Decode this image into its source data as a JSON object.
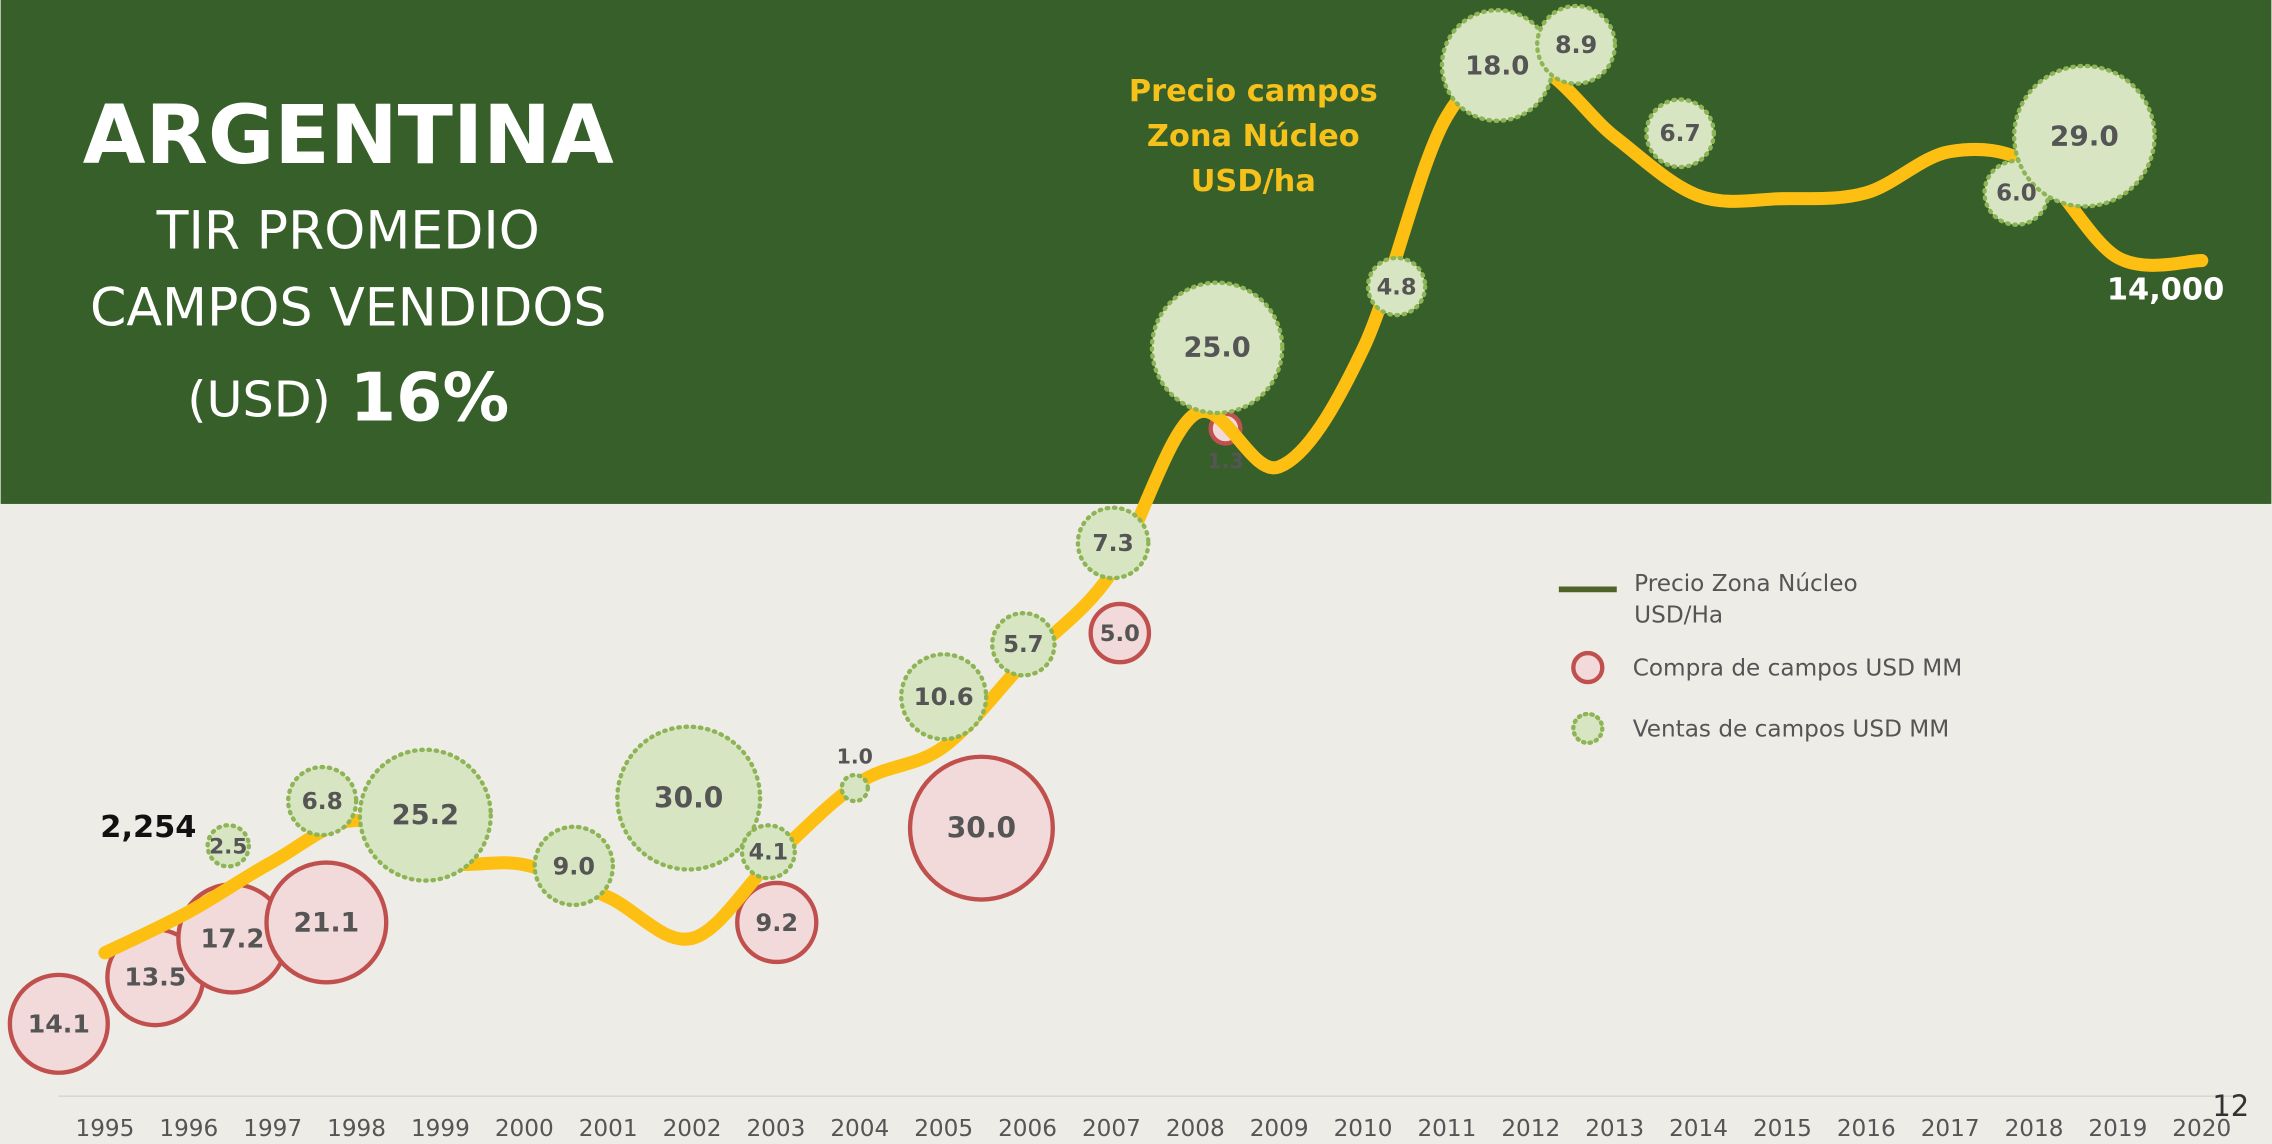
{
  "chart_data": {
    "type": "bubble",
    "title": "ARGENTINA",
    "subtitle_lines": [
      "TIR PROMEDIO",
      "CAMPOS VENDIDOS"
    ],
    "tir_unit": "(USD)",
    "tir_value": "16%",
    "annotation": [
      "Precio campos",
      "Zona Núcleo",
      "USD/ha"
    ],
    "page_number": "12",
    "xlim": [
      1993.757,
      2020.829
    ],
    "xticks": [
      1995,
      1996,
      1997,
      1998,
      1999,
      2000,
      2001,
      2002,
      2003,
      2004,
      2005,
      2006,
      2007,
      2008,
      2009,
      2010,
      2011,
      2012,
      2013,
      2014,
      2015,
      2016,
      2017,
      2018,
      2019,
      2020
    ],
    "ylim": [
      -989,
      18421
    ],
    "line": {
      "name": "Precio Zona Núcleo USD/Ha",
      "color": "#fcbf12",
      "legend_color": "#4f6228",
      "x": [
        1995,
        1996,
        1997,
        1998,
        1999,
        2000,
        2001,
        2002,
        2003,
        2004,
        2005,
        2006,
        2007,
        2008,
        2009,
        2010,
        2011,
        2012,
        2013,
        2014,
        2015,
        2016,
        2017,
        2018,
        2019,
        2020
      ],
      "values": [
        2254,
        2950,
        3800,
        4500,
        3800,
        3750,
        3200,
        2500,
        3900,
        5150,
        5750,
        7250,
        8700,
        11400,
        10500,
        12500,
        16450,
        17300,
        16100,
        15100,
        15050,
        15150,
        15850,
        15600,
        14050,
        14000
      ],
      "value_labels": [
        "2,254",
        null,
        null,
        null,
        null,
        null,
        null,
        null,
        null,
        null,
        null,
        null,
        null,
        null,
        null,
        null,
        null,
        null,
        null,
        null,
        null,
        null,
        null,
        null,
        null,
        "14,000"
      ]
    },
    "series": [
      {
        "name": "Compra de campos USD MM",
        "color": "#f2d9da",
        "edge_color": "#c0504d",
        "style": "solid",
        "x": [
          1994.45,
          1995.6,
          1996.52,
          1997.64,
          2003.01,
          2005.45,
          2007.1,
          2008.36
        ],
        "values": [
          1050,
          1840,
          2500,
          2770,
          2770,
          4370,
          7680,
          11150
        ],
        "sizes": [
          14.1,
          13.5,
          17.2,
          21.1,
          9.2,
          30.0,
          5.0,
          1.3
        ],
        "size_labels": [
          "14.1",
          "13.5",
          "17.2",
          "21.1",
          "9.2",
          "30.0",
          "5.0",
          "1.3"
        ]
      },
      {
        "name": "Ventas de campos USD MM",
        "color": "#d8e5c3",
        "edge_color": "#8db455",
        "style": "dotted",
        "x": [
          1996.47,
          1997.59,
          1998.82,
          2000.59,
          2001.96,
          2002.91,
          2003.94,
          2005.0,
          2005.95,
          2007.02,
          2008.26,
          2010.4,
          2011.6,
          2012.54,
          2013.78,
          2017.79,
          2018.6
        ],
        "values": [
          4070,
          4830,
          4590,
          3730,
          4880,
          3970,
          5050,
          6600,
          7490,
          9210,
          12520,
          13560,
          17310,
          17660,
          16160,
          15150,
          16110
        ],
        "sizes": [
          2.5,
          6.8,
          25.2,
          9.0,
          30.0,
          4.1,
          1.0,
          10.6,
          5.7,
          7.3,
          25.0,
          4.8,
          18.0,
          8.9,
          6.7,
          6.0,
          29.0
        ],
        "size_labels": [
          "2.5",
          "6.8",
          "25.2",
          "9.0",
          "30.0",
          "4.1",
          "1.0",
          "10.6",
          "5.7",
          "7.3",
          "25.0",
          "4.8",
          "18.0",
          "8.9",
          "6.7",
          "6.0",
          "29.0"
        ]
      }
    ]
  }
}
